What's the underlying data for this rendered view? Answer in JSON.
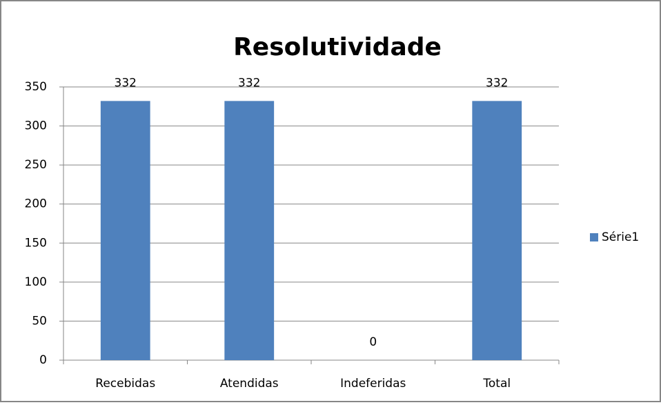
{
  "chart_data": {
    "type": "bar",
    "title": "Resolutividade",
    "categories": [
      "Recebidas",
      "Atendidas",
      "Indeferidas",
      "Total"
    ],
    "series": [
      {
        "name": "Série1",
        "color": "#4f81bd",
        "values": [
          332,
          332,
          0,
          332
        ]
      }
    ],
    "ylim": [
      0,
      350
    ],
    "yticks": [
      0,
      50,
      100,
      150,
      200,
      250,
      300,
      350
    ],
    "grid": true,
    "legend": "right",
    "data_labels": true
  }
}
